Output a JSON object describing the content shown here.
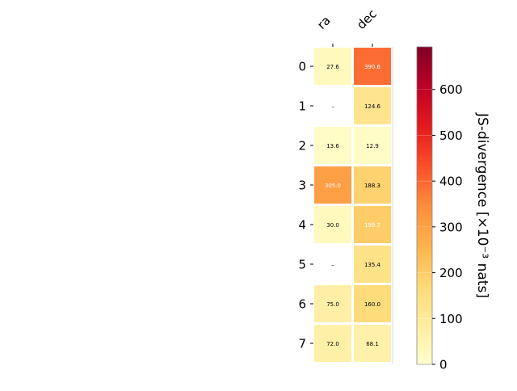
{
  "chart_data": {
    "type": "heatmap",
    "columns": [
      "ra",
      "dec"
    ],
    "rows": [
      "0",
      "1",
      "2",
      "3",
      "4",
      "5",
      "6",
      "7"
    ],
    "values": [
      [
        27.6,
        390.6
      ],
      [
        null,
        124.6
      ],
      [
        13.6,
        12.9
      ],
      [
        305.0,
        188.3
      ],
      [
        30.0,
        199.7
      ],
      [
        null,
        135.4
      ],
      [
        75.0,
        160.0
      ],
      [
        72.0,
        68.1
      ]
    ],
    "cell_labels": [
      [
        "27.6",
        "390.6"
      ],
      [
        "–",
        "124.6"
      ],
      [
        "13.6",
        "12.9"
      ],
      [
        "305.0",
        "188.3"
      ],
      [
        "30.0",
        "199.7"
      ],
      [
        "–",
        "135.4"
      ],
      [
        "75.0",
        "160.0"
      ],
      [
        "72.0",
        "68.1"
      ]
    ],
    "colorbar": {
      "label": "JS-divergence [×10⁻³ nats]",
      "range": [
        0,
        693
      ],
      "ticks": [
        0,
        100,
        200,
        300,
        400,
        500,
        600
      ],
      "colormap": "YlOrRd",
      "colors": [
        "#ffffcc",
        "#ffeda0",
        "#fed976",
        "#feb24c",
        "#fd8d3c",
        "#fc4e2a",
        "#e31a1c",
        "#bd0026",
        "#800026"
      ]
    }
  }
}
